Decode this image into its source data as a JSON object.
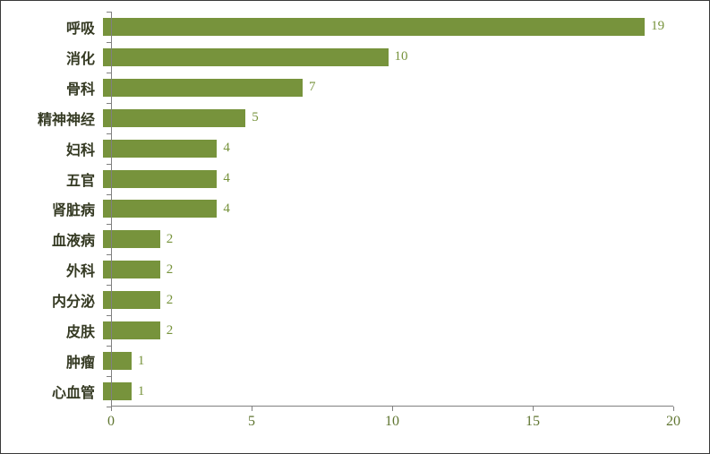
{
  "chart_data": {
    "type": "bar",
    "orientation": "horizontal",
    "title": "",
    "xlabel": "",
    "ylabel": "",
    "categories": [
      "呼吸",
      "消化",
      "骨科",
      "精神神经",
      "妇科",
      "五官",
      "肾脏病",
      "血液病",
      "外科",
      "内分泌",
      "皮肤",
      "肿瘤",
      "心血管"
    ],
    "values": [
      19,
      10,
      7,
      5,
      4,
      4,
      4,
      2,
      2,
      2,
      2,
      1,
      1
    ],
    "xlim": [
      0,
      20
    ],
    "xticks": [
      0,
      5,
      10,
      15,
      20
    ],
    "grid": false,
    "legend": false,
    "bar_color": "#77933C",
    "value_label_color": "#77933C",
    "tick_label_color": "#5f7530",
    "category_label_color": "#353a23",
    "axis_color": "#808080"
  }
}
